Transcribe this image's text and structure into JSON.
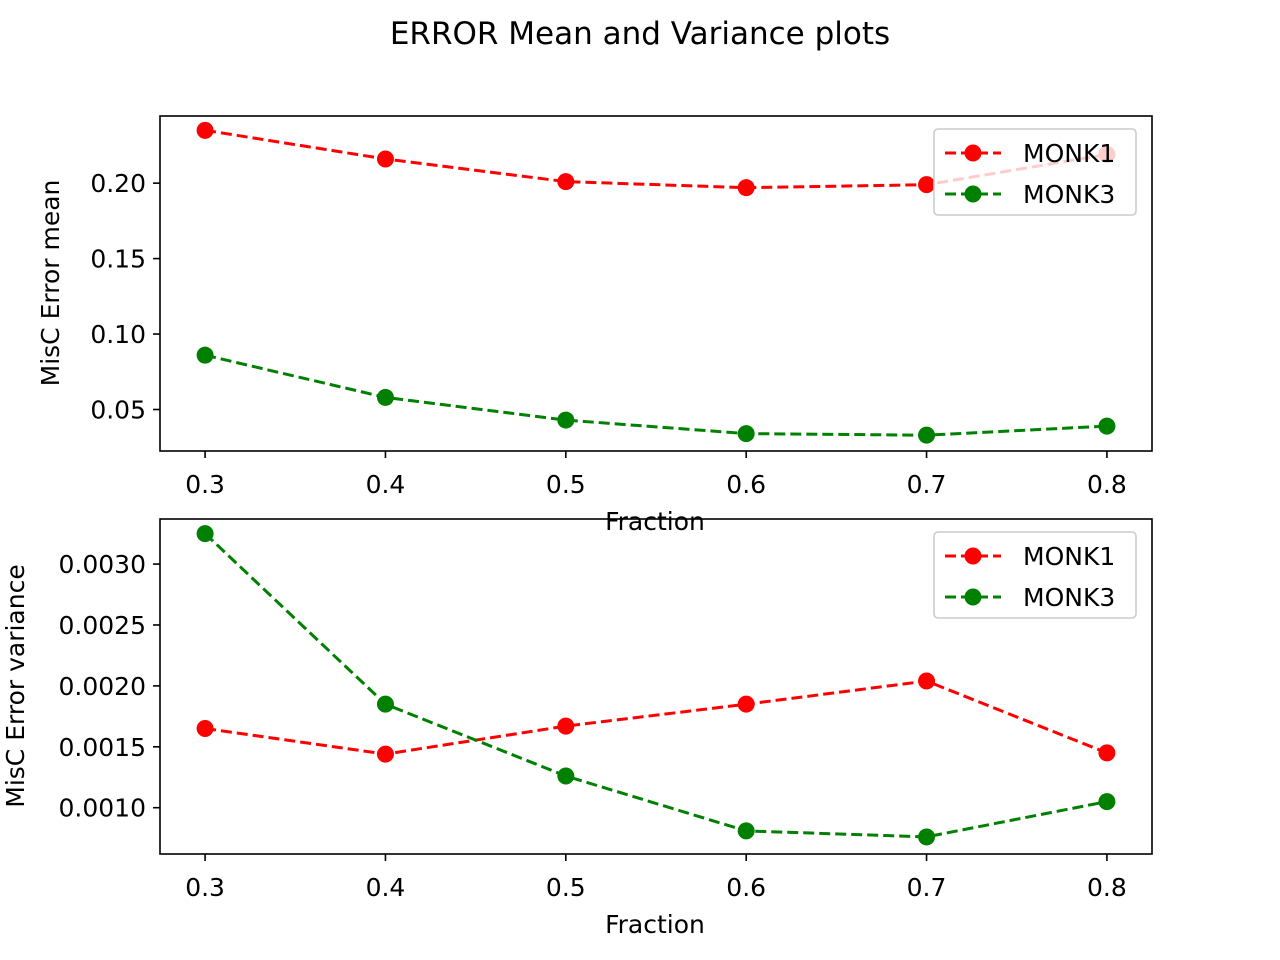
{
  "figure": {
    "title": "ERROR Mean and Variance plots"
  },
  "colors": {
    "MONK1": "#ff0000",
    "MONK3": "#008000",
    "axes": "#000000",
    "legend_border": "#cccccc"
  },
  "chart_data": [
    {
      "type": "line",
      "title": "",
      "xlabel": "Fraction",
      "ylabel": "MisC Error mean",
      "x": [
        0.3,
        0.4,
        0.5,
        0.6,
        0.7,
        0.8
      ],
      "x_ticks": [
        "0.3",
        "0.4",
        "0.5",
        "0.6",
        "0.7",
        "0.8"
      ],
      "xlim": [
        0.275,
        0.825
      ],
      "ylim": [
        0.0225,
        0.2445
      ],
      "y_ticks": [
        0.05,
        0.1,
        0.15,
        0.2
      ],
      "y_tick_labels": [
        "0.05",
        "0.10",
        "0.15",
        "0.20"
      ],
      "grid": false,
      "legend_position": "top-right",
      "series": [
        {
          "name": "MONK1",
          "color": "#ff0000",
          "style": "dashed",
          "marker": "circle",
          "values": [
            0.235,
            0.216,
            0.201,
            0.197,
            0.199,
            0.219
          ]
        },
        {
          "name": "MONK3",
          "color": "#008000",
          "style": "dashed",
          "marker": "circle",
          "values": [
            0.086,
            0.058,
            0.043,
            0.034,
            0.033,
            0.039
          ]
        }
      ]
    },
    {
      "type": "line",
      "title": "",
      "xlabel": "Fraction",
      "ylabel": "MisC Error variance",
      "x": [
        0.3,
        0.4,
        0.5,
        0.6,
        0.7,
        0.8
      ],
      "x_ticks": [
        "0.3",
        "0.4",
        "0.5",
        "0.6",
        "0.7",
        "0.8"
      ],
      "xlim": [
        0.275,
        0.825
      ],
      "ylim": [
        0.00062,
        0.00337
      ],
      "y_ticks": [
        0.001,
        0.0015,
        0.002,
        0.0025,
        0.003
      ],
      "y_tick_labels": [
        "0.0010",
        "0.0015",
        "0.0020",
        "0.0025",
        "0.0030"
      ],
      "grid": false,
      "legend_position": "top-right",
      "series": [
        {
          "name": "MONK1",
          "color": "#ff0000",
          "style": "dashed",
          "marker": "circle",
          "values": [
            0.00165,
            0.00144,
            0.00167,
            0.00185,
            0.00204,
            0.00145
          ]
        },
        {
          "name": "MONK3",
          "color": "#008000",
          "style": "dashed",
          "marker": "circle",
          "values": [
            0.00325,
            0.00185,
            0.00126,
            0.00081,
            0.00076,
            0.00105
          ]
        }
      ]
    }
  ]
}
